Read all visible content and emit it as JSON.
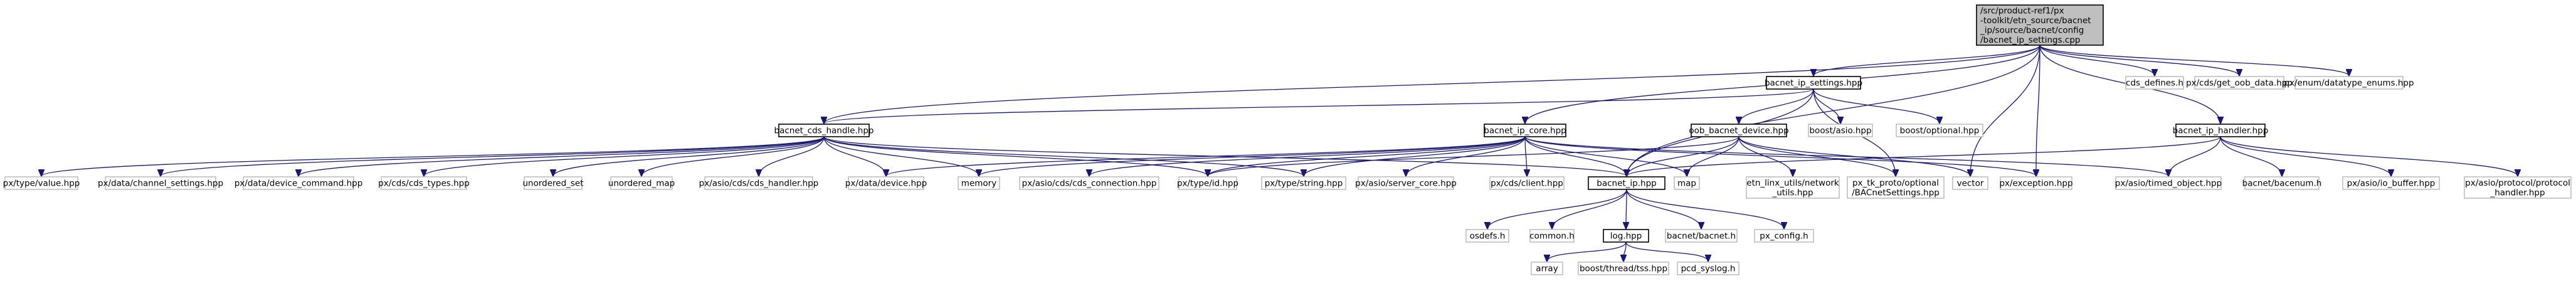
{
  "graph": {
    "title": "",
    "colors": {
      "edge": "#191970",
      "root_fill": "#bfbfbf",
      "node_border_linked": "#000000",
      "node_border_plain": "#bfbfbf"
    },
    "nodes": [
      {
        "id": "root",
        "kind": "root",
        "lines": [
          "/src/product-ref1/px",
          "-toolkit/etn_source/bacnet",
          "_ip/source/bacnet/config",
          "/bacnet_ip_settings.cpp"
        ]
      },
      {
        "id": "cds_defines",
        "kind": "plain",
        "lines": [
          "cds_defines.h"
        ]
      },
      {
        "id": "get_oob",
        "kind": "plain",
        "lines": [
          "px/cds/get_oob_data.hpp"
        ]
      },
      {
        "id": "datatype_enums",
        "kind": "plain",
        "lines": [
          "px/enum/datatype_enums.hpp"
        ]
      },
      {
        "id": "ip_settings",
        "kind": "linked",
        "lines": [
          "bacnet_ip_settings.hpp"
        ]
      },
      {
        "id": "cds_handle",
        "kind": "linked",
        "lines": [
          "bacnet_cds_handle.hpp"
        ]
      },
      {
        "id": "ip_core",
        "kind": "linked",
        "lines": [
          "bacnet_ip_core.hpp"
        ]
      },
      {
        "id": "oob_device",
        "kind": "linked",
        "lines": [
          "oob_bacnet_device.hpp"
        ]
      },
      {
        "id": "boost_asio",
        "kind": "plain",
        "lines": [
          "boost/asio.hpp"
        ]
      },
      {
        "id": "boost_optional",
        "kind": "plain",
        "lines": [
          "boost/optional.hpp"
        ]
      },
      {
        "id": "ip_handler",
        "kind": "linked",
        "lines": [
          "bacnet_ip_handler.hpp"
        ]
      },
      {
        "id": "value",
        "kind": "plain",
        "lines": [
          "px/type/value.hpp"
        ]
      },
      {
        "id": "channel_settings",
        "kind": "plain",
        "lines": [
          "px/data/channel_settings.hpp"
        ]
      },
      {
        "id": "device_command",
        "kind": "plain",
        "lines": [
          "px/data/device_command.hpp"
        ]
      },
      {
        "id": "cds_types",
        "kind": "plain",
        "lines": [
          "px/cds/cds_types.hpp"
        ]
      },
      {
        "id": "unordered_set",
        "kind": "plain",
        "lines": [
          "unordered_set"
        ]
      },
      {
        "id": "unordered_map",
        "kind": "plain",
        "lines": [
          "unordered_map"
        ]
      },
      {
        "id": "cds_handler",
        "kind": "plain",
        "lines": [
          "px/asio/cds/cds_handler.hpp"
        ]
      },
      {
        "id": "device",
        "kind": "plain",
        "lines": [
          "px/data/device.hpp"
        ]
      },
      {
        "id": "memory",
        "kind": "plain",
        "lines": [
          "memory"
        ]
      },
      {
        "id": "cds_connection",
        "kind": "plain",
        "lines": [
          "px/asio/cds/cds_connection.hpp"
        ]
      },
      {
        "id": "type_id",
        "kind": "plain",
        "lines": [
          "px/type/id.hpp"
        ]
      },
      {
        "id": "type_string",
        "kind": "plain",
        "lines": [
          "px/type/string.hpp"
        ]
      },
      {
        "id": "server_core",
        "kind": "plain",
        "lines": [
          "px/asio/server_core.hpp"
        ]
      },
      {
        "id": "cds_client",
        "kind": "plain",
        "lines": [
          "px/cds/client.hpp"
        ]
      },
      {
        "id": "bacnet_ip",
        "kind": "linked",
        "lines": [
          "bacnet_ip.hpp"
        ]
      },
      {
        "id": "map",
        "kind": "plain",
        "lines": [
          "map"
        ]
      },
      {
        "id": "etn_linx",
        "kind": "plain",
        "lines": [
          "etn_linx_utils/network",
          "_utils.hpp"
        ]
      },
      {
        "id": "tk_proto",
        "kind": "plain",
        "lines": [
          "px_tk_proto/optional",
          "/BACnetSettings.hpp"
        ]
      },
      {
        "id": "vector",
        "kind": "plain",
        "lines": [
          "vector"
        ]
      },
      {
        "id": "exception",
        "kind": "plain",
        "lines": [
          "px/exception.hpp"
        ]
      },
      {
        "id": "timed_object",
        "kind": "plain",
        "lines": [
          "px/asio/timed_object.hpp"
        ]
      },
      {
        "id": "bacenum",
        "kind": "plain",
        "lines": [
          "bacnet/bacenum.h"
        ]
      },
      {
        "id": "io_buffer",
        "kind": "plain",
        "lines": [
          "px/asio/io_buffer.hpp"
        ]
      },
      {
        "id": "protocol_handler",
        "kind": "plain",
        "lines": [
          "px/asio/protocol/protocol",
          "_handler.hpp"
        ]
      },
      {
        "id": "osdefs",
        "kind": "plain",
        "lines": [
          "osdefs.h"
        ]
      },
      {
        "id": "common",
        "kind": "plain",
        "lines": [
          "common.h"
        ]
      },
      {
        "id": "log",
        "kind": "linked",
        "lines": [
          "log.hpp"
        ]
      },
      {
        "id": "bacnet_h",
        "kind": "plain",
        "lines": [
          "bacnet/bacnet.h"
        ]
      },
      {
        "id": "px_config",
        "kind": "plain",
        "lines": [
          "px_config.h"
        ]
      },
      {
        "id": "array",
        "kind": "plain",
        "lines": [
          "array"
        ]
      },
      {
        "id": "tss",
        "kind": "plain",
        "lines": [
          "boost/thread/tss.hpp"
        ]
      },
      {
        "id": "syslog",
        "kind": "plain",
        "lines": [
          "pcd_syslog.h"
        ]
      }
    ],
    "edges": [
      [
        "root",
        "cds_defines"
      ],
      [
        "root",
        "get_oob"
      ],
      [
        "root",
        "datatype_enums"
      ],
      [
        "root",
        "ip_settings"
      ],
      [
        "root",
        "cds_handle"
      ],
      [
        "root",
        "ip_core"
      ],
      [
        "root",
        "bacnet_ip"
      ],
      [
        "root",
        "ip_handler"
      ],
      [
        "root",
        "vector"
      ],
      [
        "root",
        "exception"
      ],
      [
        "ip_settings",
        "cds_handle"
      ],
      [
        "ip_settings",
        "oob_device"
      ],
      [
        "ip_settings",
        "boost_asio"
      ],
      [
        "ip_settings",
        "boost_optional"
      ],
      [
        "ip_settings",
        "bacnet_ip"
      ],
      [
        "ip_settings",
        "tk_proto"
      ],
      [
        "cds_handle",
        "value"
      ],
      [
        "cds_handle",
        "channel_settings"
      ],
      [
        "cds_handle",
        "device_command"
      ],
      [
        "cds_handle",
        "cds_types"
      ],
      [
        "cds_handle",
        "unordered_set"
      ],
      [
        "cds_handle",
        "unordered_map"
      ],
      [
        "cds_handle",
        "cds_handler"
      ],
      [
        "cds_handle",
        "device"
      ],
      [
        "cds_handle",
        "memory"
      ],
      [
        "cds_handle",
        "type_id"
      ],
      [
        "cds_handle",
        "type_string"
      ],
      [
        "cds_handle",
        "bacnet_ip"
      ],
      [
        "ip_core",
        "device"
      ],
      [
        "ip_core",
        "memory"
      ],
      [
        "ip_core",
        "cds_connection"
      ],
      [
        "ip_core",
        "type_id"
      ],
      [
        "ip_core",
        "type_string"
      ],
      [
        "ip_core",
        "server_core"
      ],
      [
        "ip_core",
        "cds_client"
      ],
      [
        "ip_core",
        "bacnet_ip"
      ],
      [
        "ip_core",
        "map"
      ],
      [
        "ip_core",
        "timed_object"
      ],
      [
        "ip_core",
        "exception"
      ],
      [
        "oob_device",
        "bacnet_ip"
      ],
      [
        "oob_device",
        "etn_linx"
      ],
      [
        "oob_device",
        "tk_proto"
      ],
      [
        "oob_device",
        "type_id"
      ],
      [
        "oob_device",
        "map"
      ],
      [
        "oob_device",
        "vector"
      ],
      [
        "ip_handler",
        "bacnet_ip"
      ],
      [
        "ip_handler",
        "timed_object"
      ],
      [
        "ip_handler",
        "bacenum"
      ],
      [
        "ip_handler",
        "io_buffer"
      ],
      [
        "ip_handler",
        "protocol_handler"
      ],
      [
        "bacnet_ip",
        "osdefs"
      ],
      [
        "bacnet_ip",
        "common"
      ],
      [
        "bacnet_ip",
        "log"
      ],
      [
        "bacnet_ip",
        "bacnet_h"
      ],
      [
        "bacnet_ip",
        "px_config"
      ],
      [
        "log",
        "array"
      ],
      [
        "log",
        "tss"
      ],
      [
        "log",
        "syslog"
      ]
    ]
  }
}
